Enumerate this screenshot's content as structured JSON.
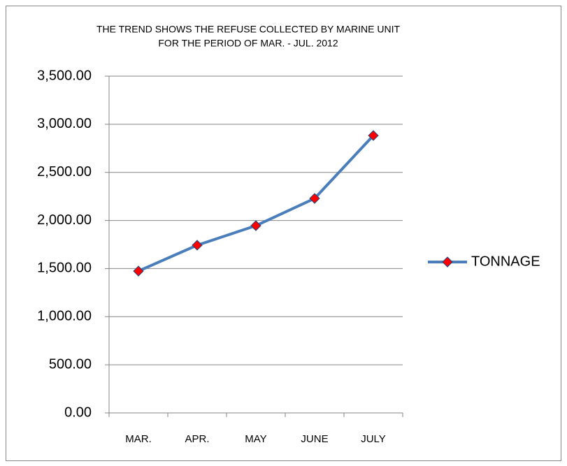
{
  "chart_data": {
    "type": "line",
    "title": [
      "THE TREND SHOWS THE REFUSE COLLECTED BY MARINE UNIT",
      "FOR THE PERIOD OF MAR. - JUL. 2012"
    ],
    "categories": [
      "MAR.",
      "APR.",
      "MAY",
      "JUNE",
      "JULY"
    ],
    "series": [
      {
        "name": "TONNAGE",
        "color": "#4a7ebb",
        "marker_color": "#ff0000",
        "values": [
          1474,
          1743,
          1946,
          2229,
          2883
        ]
      }
    ],
    "ylim": [
      0,
      3500
    ],
    "yticks": [
      {
        "value": 0,
        "label": "0.00"
      },
      {
        "value": 500,
        "label": "500.00"
      },
      {
        "value": 1000,
        "label": "1,000.00"
      },
      {
        "value": 1500,
        "label": "1,500.00"
      },
      {
        "value": 2000,
        "label": "2,000.00"
      },
      {
        "value": 2500,
        "label": "2,500.00"
      },
      {
        "value": 3000,
        "label": "3,000.00"
      },
      {
        "value": 3500,
        "label": "3,500.00"
      }
    ],
    "grid": true,
    "legend": "right"
  }
}
